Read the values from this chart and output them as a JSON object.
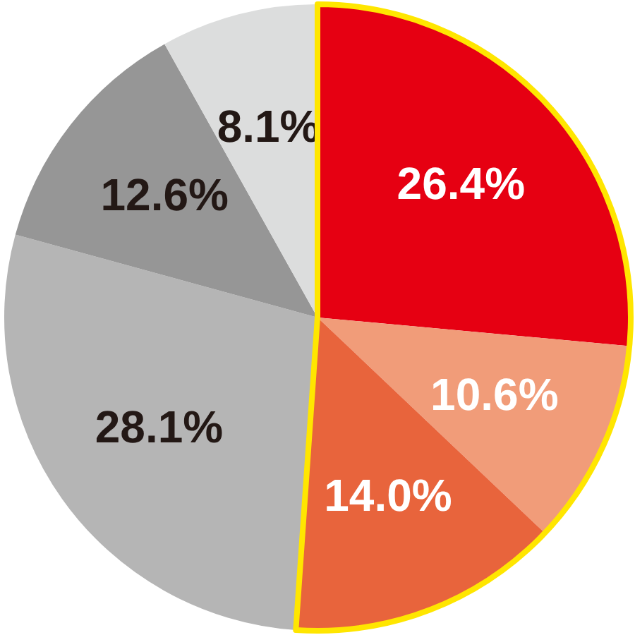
{
  "chart_data": {
    "type": "pie",
    "categories": [
      null,
      null,
      null,
      null,
      null,
      null
    ],
    "values": [
      26.4,
      10.6,
      14.0,
      28.1,
      12.6,
      8.1
    ],
    "colors": [
      "#e60012",
      "#f19c79",
      "#e8643c",
      "#b5b5b5",
      "#969696",
      "#dcdddd"
    ],
    "value_labels": [
      "26.4%",
      "10.6%",
      "14.0%",
      "28.1%",
      "12.6%",
      "8.1%"
    ],
    "legend": false
  }
}
